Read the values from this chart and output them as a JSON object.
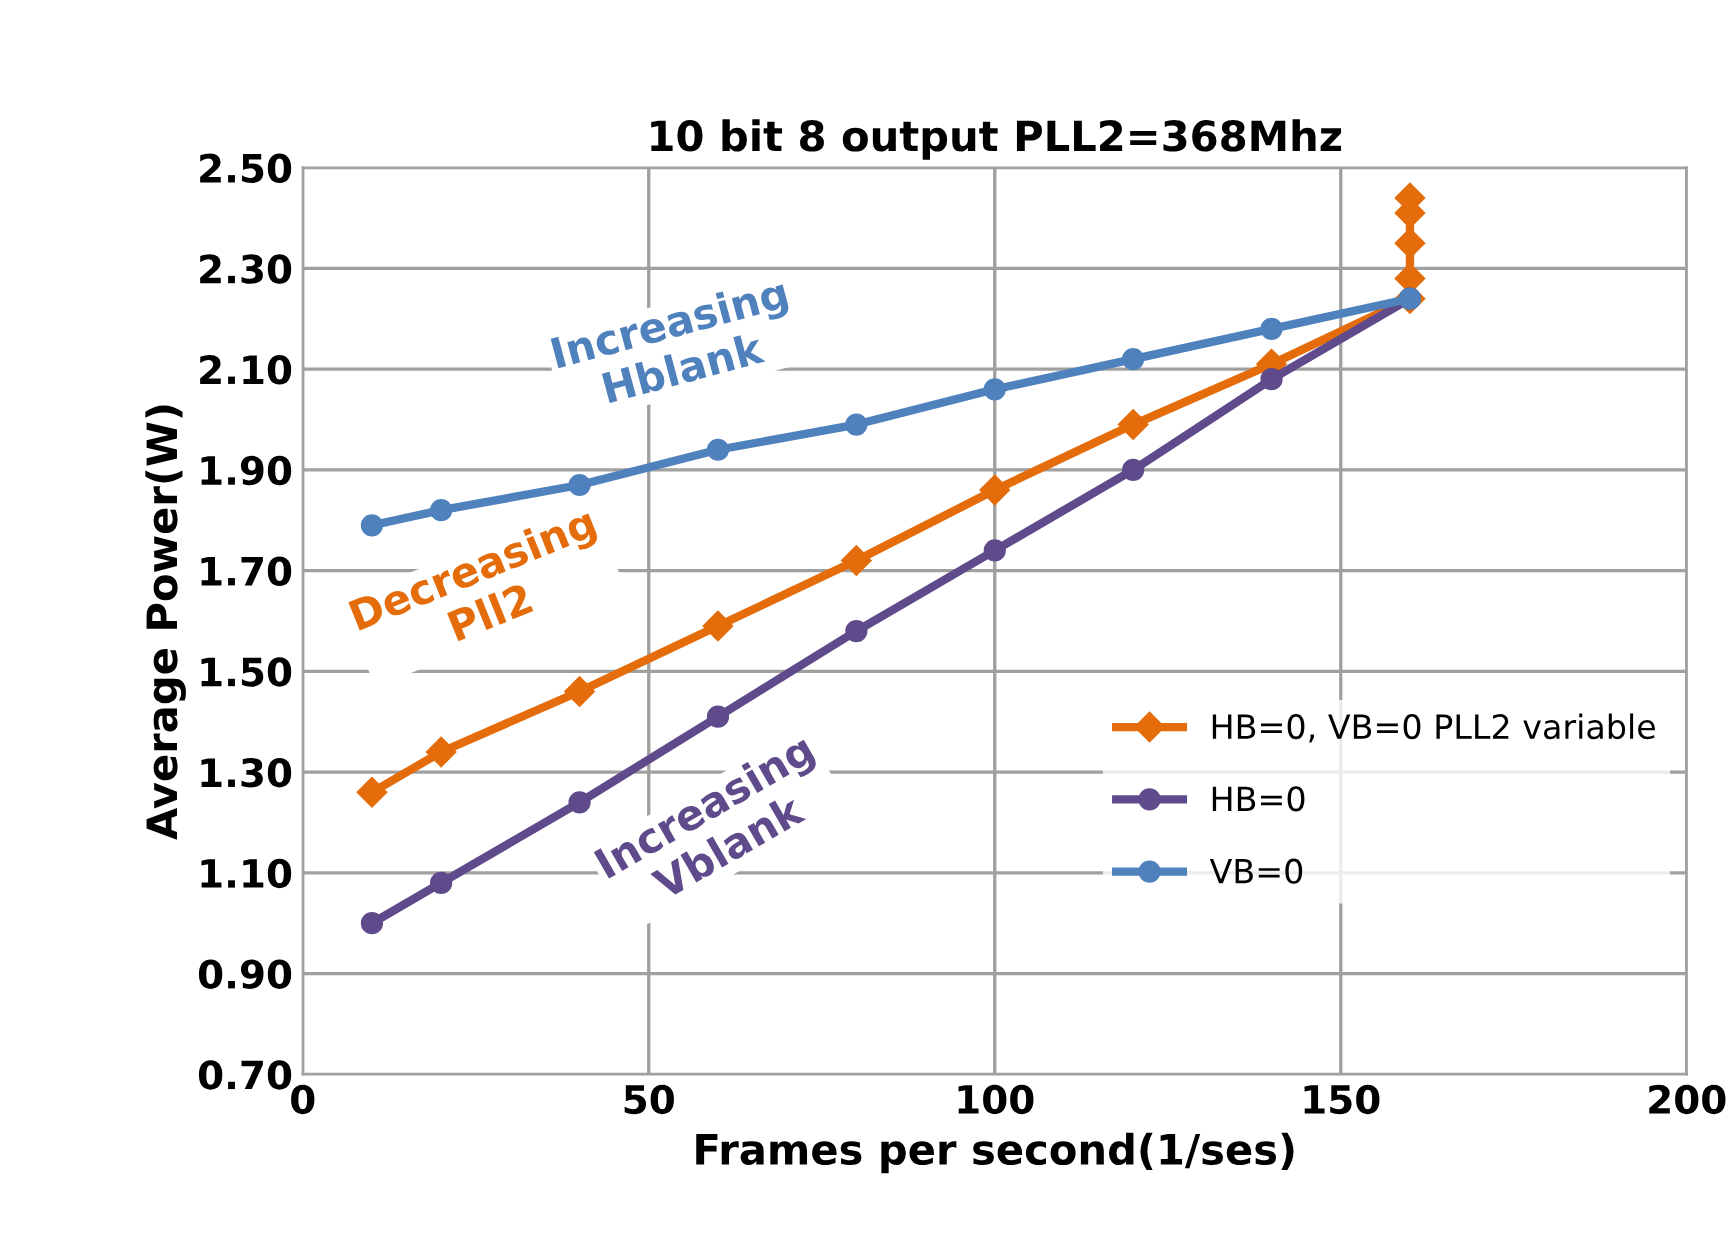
{
  "chart_data": {
    "type": "line",
    "title": "10 bit 8 output PLL2=368Mhz",
    "xlabel": "Frames per second(1/ses)",
    "ylabel": "Average Power(W)",
    "series": [
      {
        "name": "HB=0, VB=0 PLL2 variable",
        "color": "#e46c0a",
        "marker": "diamond",
        "x": [
          10,
          20,
          40,
          60,
          80,
          100,
          120,
          140,
          160,
          160,
          160,
          160,
          160
        ],
        "values": [
          1.26,
          1.34,
          1.46,
          1.59,
          1.72,
          1.86,
          1.99,
          2.11,
          2.24,
          2.28,
          2.35,
          2.41,
          2.44
        ]
      },
      {
        "name": "HB=0",
        "color": "#5f4b8b",
        "marker": "circle",
        "x": [
          10,
          20,
          40,
          60,
          80,
          100,
          120,
          140,
          160
        ],
        "values": [
          1.0,
          1.08,
          1.24,
          1.41,
          1.58,
          1.74,
          1.9,
          2.08,
          2.24
        ]
      },
      {
        "name": "VB=0",
        "color": "#4f81bd",
        "marker": "circle",
        "x": [
          10,
          20,
          40,
          60,
          80,
          100,
          120,
          140,
          160
        ],
        "values": [
          1.79,
          1.82,
          1.87,
          1.94,
          1.99,
          2.06,
          2.12,
          2.18,
          2.24
        ]
      }
    ],
    "annotations": [
      "Decreasing\nPll2",
      "Increasing\nVblank",
      "Increasing\nHblank"
    ],
    "xlim": [
      0,
      200
    ],
    "xticks": [
      0,
      50,
      100,
      150,
      200
    ],
    "ylim": [
      0.7,
      2.5
    ],
    "yticks": [
      {
        "value": 0.7,
        "label": "0.70"
      },
      {
        "value": 0.9,
        "label": "0.90"
      },
      {
        "value": 1.1,
        "label": "1.10"
      },
      {
        "value": 1.3,
        "label": "1.30"
      },
      {
        "value": 1.5,
        "label": "1.50"
      },
      {
        "value": 1.7,
        "label": "1.70"
      },
      {
        "value": 1.9,
        "label": "1.90"
      },
      {
        "value": 2.1,
        "label": "2.10"
      },
      {
        "value": 2.3,
        "label": "2.30"
      },
      {
        "value": 2.5,
        "label": "2.50"
      }
    ],
    "grid": true,
    "legend": "bottom right",
    "line_style": "solid"
  }
}
